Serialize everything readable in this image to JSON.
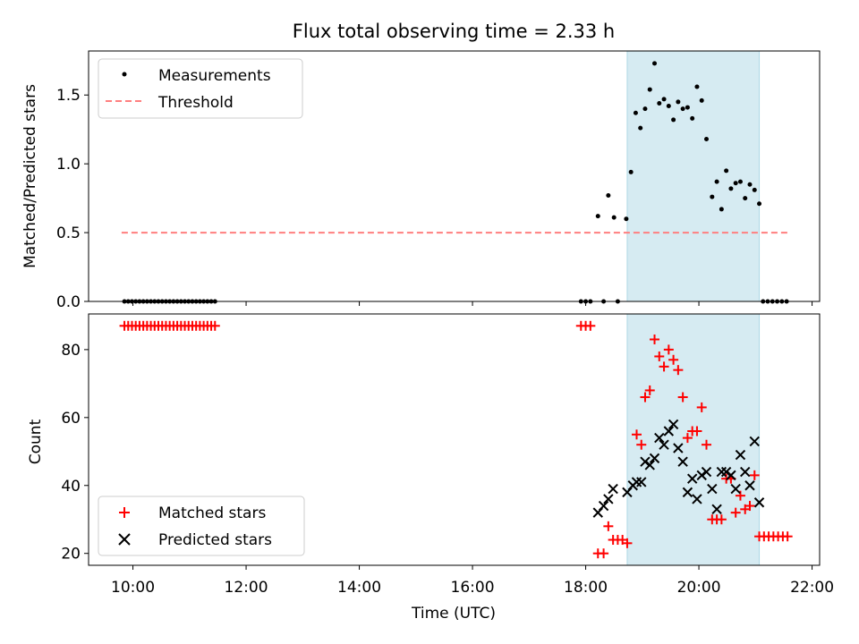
{
  "figure": {
    "title": "Flux total observing time = 2.33 h",
    "highlight_color": "#add8e6",
    "highlight_span": [
      "18:44",
      "21:04"
    ]
  },
  "chart_data": [
    {
      "type": "scatter",
      "xlabel": "",
      "ylabel": "Matched/Predicted stars",
      "xlim": [
        "09:13",
        "22:08"
      ],
      "ylim": [
        0.0,
        1.82
      ],
      "yticks": [
        0.0,
        0.5,
        1.0,
        1.5
      ],
      "legend": {
        "position": "top-left",
        "entries": [
          {
            "label": "Measurements",
            "marker": "dot",
            "color": "#000000"
          },
          {
            "label": "Threshold",
            "marker": "dashed-line",
            "color": "#ff7f7f"
          }
        ]
      },
      "threshold": {
        "y": 0.5,
        "x_start": "09:48",
        "x_end": "21:36",
        "color": "#ff7f7f"
      },
      "series": [
        {
          "name": "Measurements",
          "color": "#000000",
          "points": [
            [
              "09:51",
              0
            ],
            [
              "09:55",
              0
            ],
            [
              "09:59",
              0
            ],
            [
              "10:03",
              0
            ],
            [
              "10:07",
              0
            ],
            [
              "10:11",
              0
            ],
            [
              "10:15",
              0
            ],
            [
              "10:19",
              0
            ],
            [
              "10:23",
              0
            ],
            [
              "10:27",
              0
            ],
            [
              "10:31",
              0
            ],
            [
              "10:35",
              0
            ],
            [
              "10:39",
              0
            ],
            [
              "10:43",
              0
            ],
            [
              "10:47",
              0
            ],
            [
              "10:51",
              0
            ],
            [
              "10:55",
              0
            ],
            [
              "10:59",
              0
            ],
            [
              "11:03",
              0
            ],
            [
              "11:07",
              0
            ],
            [
              "11:11",
              0
            ],
            [
              "11:15",
              0
            ],
            [
              "11:19",
              0
            ],
            [
              "11:23",
              0
            ],
            [
              "11:27",
              0
            ],
            [
              "17:55",
              0
            ],
            [
              "18:00",
              0
            ],
            [
              "18:05",
              0
            ],
            [
              "18:13",
              0.62
            ],
            [
              "18:19",
              0
            ],
            [
              "18:24",
              0.77
            ],
            [
              "18:30",
              0.61
            ],
            [
              "18:34",
              0
            ],
            [
              "18:43",
              0.6
            ],
            [
              "18:48",
              0.94
            ],
            [
              "18:53",
              1.37
            ],
            [
              "18:58",
              1.26
            ],
            [
              "19:03",
              1.4
            ],
            [
              "19:08",
              1.54
            ],
            [
              "19:13",
              1.73
            ],
            [
              "19:18",
              1.44
            ],
            [
              "19:23",
              1.47
            ],
            [
              "19:28",
              1.42
            ],
            [
              "19:33",
              1.32
            ],
            [
              "19:38",
              1.45
            ],
            [
              "19:43",
              1.4
            ],
            [
              "19:48",
              1.41
            ],
            [
              "19:53",
              1.33
            ],
            [
              "19:58",
              1.56
            ],
            [
              "20:03",
              1.46
            ],
            [
              "20:08",
              1.18
            ],
            [
              "20:14",
              0.76
            ],
            [
              "20:19",
              0.87
            ],
            [
              "20:24",
              0.67
            ],
            [
              "20:29",
              0.95
            ],
            [
              "20:34",
              0.82
            ],
            [
              "20:39",
              0.86
            ],
            [
              "20:44",
              0.87
            ],
            [
              "20:49",
              0.75
            ],
            [
              "20:54",
              0.85
            ],
            [
              "20:59",
              0.81
            ],
            [
              "21:04",
              0.71
            ],
            [
              "21:08",
              0
            ],
            [
              "21:13",
              0
            ],
            [
              "21:18",
              0
            ],
            [
              "21:23",
              0
            ],
            [
              "21:28",
              0
            ],
            [
              "21:33",
              0
            ]
          ]
        }
      ],
      "xticks": [
        "10:00",
        "12:00",
        "14:00",
        "16:00",
        "18:00",
        "20:00",
        "22:00"
      ],
      "xticks_labeled": false,
      "grid": false
    },
    {
      "type": "scatter",
      "xlabel": "Time (UTC)",
      "ylabel": "Count",
      "xlim": [
        "09:13",
        "22:08"
      ],
      "ylim": [
        16.5,
        90.5
      ],
      "yticks": [
        20,
        40,
        60,
        80
      ],
      "xticks": [
        "10:00",
        "12:00",
        "14:00",
        "16:00",
        "18:00",
        "20:00",
        "22:00"
      ],
      "legend": {
        "position": "bottom-left",
        "entries": [
          {
            "label": "Matched stars",
            "marker": "plus",
            "color": "#ff0000"
          },
          {
            "label": "Predicted stars",
            "marker": "x",
            "color": "#000000"
          }
        ]
      },
      "grid": false,
      "series": [
        {
          "name": "Matched stars",
          "color": "#ff0000",
          "marker": "plus",
          "points": [
            [
              "09:51",
              87
            ],
            [
              "09:55",
              87
            ],
            [
              "09:59",
              87
            ],
            [
              "10:03",
              87
            ],
            [
              "10:07",
              87
            ],
            [
              "10:11",
              87
            ],
            [
              "10:15",
              87
            ],
            [
              "10:19",
              87
            ],
            [
              "10:23",
              87
            ],
            [
              "10:27",
              87
            ],
            [
              "10:31",
              87
            ],
            [
              "10:35",
              87
            ],
            [
              "10:39",
              87
            ],
            [
              "10:43",
              87
            ],
            [
              "10:47",
              87
            ],
            [
              "10:51",
              87
            ],
            [
              "10:55",
              87
            ],
            [
              "10:59",
              87
            ],
            [
              "11:03",
              87
            ],
            [
              "11:07",
              87
            ],
            [
              "11:11",
              87
            ],
            [
              "11:15",
              87
            ],
            [
              "11:19",
              87
            ],
            [
              "11:23",
              87
            ],
            [
              "11:27",
              87
            ],
            [
              "17:55",
              87
            ],
            [
              "18:00",
              87
            ],
            [
              "18:05",
              87
            ],
            [
              "18:13",
              20
            ],
            [
              "18:19",
              20
            ],
            [
              "18:24",
              28
            ],
            [
              "18:29",
              24
            ],
            [
              "18:34",
              24
            ],
            [
              "18:39",
              24
            ],
            [
              "18:44",
              23
            ],
            [
              "18:54",
              55
            ],
            [
              "18:59",
              52
            ],
            [
              "19:03",
              66
            ],
            [
              "19:08",
              68
            ],
            [
              "19:13",
              83
            ],
            [
              "19:18",
              78
            ],
            [
              "19:23",
              75
            ],
            [
              "19:28",
              80
            ],
            [
              "19:33",
              77
            ],
            [
              "19:38",
              74
            ],
            [
              "19:43",
              66
            ],
            [
              "19:48",
              54
            ],
            [
              "19:53",
              56
            ],
            [
              "19:58",
              56
            ],
            [
              "20:03",
              63
            ],
            [
              "20:08",
              52
            ],
            [
              "20:14",
              30
            ],
            [
              "20:19",
              30
            ],
            [
              "20:24",
              30
            ],
            [
              "20:29",
              42
            ],
            [
              "20:34",
              42
            ],
            [
              "20:39",
              32
            ],
            [
              "20:44",
              37
            ],
            [
              "20:49",
              33
            ],
            [
              "20:54",
              34
            ],
            [
              "20:59",
              43
            ],
            [
              "21:04",
              25
            ],
            [
              "21:09",
              25
            ],
            [
              "21:14",
              25
            ],
            [
              "21:19",
              25
            ],
            [
              "21:24",
              25
            ],
            [
              "21:29",
              25
            ],
            [
              "21:34",
              25
            ]
          ]
        },
        {
          "name": "Predicted stars",
          "color": "#000000",
          "marker": "x",
          "points": [
            [
              "18:13",
              32
            ],
            [
              "18:19",
              34
            ],
            [
              "18:24",
              36
            ],
            [
              "18:29",
              39
            ],
            [
              "18:44",
              38
            ],
            [
              "18:50",
              40
            ],
            [
              "18:54",
              41
            ],
            [
              "18:59",
              41
            ],
            [
              "19:03",
              47
            ],
            [
              "19:08",
              46
            ],
            [
              "19:13",
              48
            ],
            [
              "19:18",
              54
            ],
            [
              "19:23",
              52
            ],
            [
              "19:28",
              56
            ],
            [
              "19:33",
              58
            ],
            [
              "19:38",
              51
            ],
            [
              "19:43",
              47
            ],
            [
              "19:48",
              38
            ],
            [
              "19:53",
              42
            ],
            [
              "19:58",
              36
            ],
            [
              "20:03",
              43
            ],
            [
              "20:08",
              44
            ],
            [
              "20:14",
              39
            ],
            [
              "20:19",
              33
            ],
            [
              "20:24",
              44
            ],
            [
              "20:29",
              44
            ],
            [
              "20:34",
              43
            ],
            [
              "20:39",
              39
            ],
            [
              "20:44",
              49
            ],
            [
              "20:49",
              44
            ],
            [
              "20:54",
              40
            ],
            [
              "20:59",
              53
            ],
            [
              "21:04",
              35
            ]
          ]
        }
      ]
    }
  ]
}
